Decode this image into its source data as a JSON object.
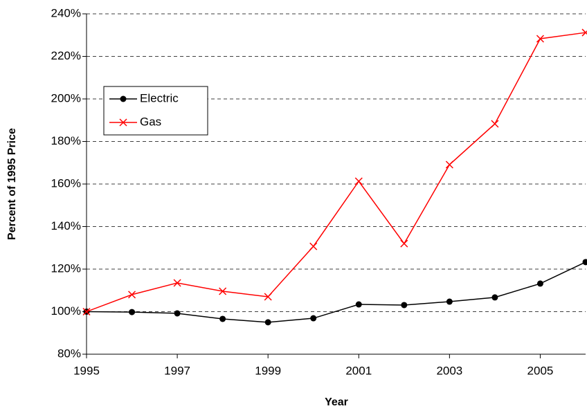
{
  "chart_data": {
    "type": "line",
    "x_label": "Year",
    "y_label": "Percent of 1995 Price",
    "x": [
      1995,
      1996,
      1997,
      1998,
      1999,
      2000,
      2001,
      2002,
      2003,
      2004,
      2005,
      2006
    ],
    "series": [
      {
        "name": "Electric",
        "color": "#000000",
        "marker": "circle",
        "values": [
          100,
          99.8,
          99.2,
          96.6,
          95.0,
          96.9,
          103.4,
          103.1,
          104.7,
          106.7,
          113.2,
          123.3
        ]
      },
      {
        "name": "Gas",
        "color": "#ff0000",
        "marker": "x",
        "values": [
          100,
          108,
          113.5,
          109.6,
          107,
          130.7,
          161.3,
          132,
          169.1,
          188.3,
          228.3,
          231.2
        ]
      }
    ],
    "xlim": [
      1995,
      2006
    ],
    "xticks": [
      1995,
      1997,
      1999,
      2001,
      2003,
      2005
    ],
    "ylim": [
      80,
      240
    ],
    "yticks": [
      {
        "value": 80,
        "label": "80%"
      },
      {
        "value": 100,
        "label": "100%"
      },
      {
        "value": 120,
        "label": "120%"
      },
      {
        "value": 140,
        "label": "140%"
      },
      {
        "value": 160,
        "label": "160%"
      },
      {
        "value": 180,
        "label": "180%"
      },
      {
        "value": 200,
        "label": "200%"
      },
      {
        "value": 220,
        "label": "220%"
      },
      {
        "value": 240,
        "label": "240%"
      }
    ],
    "grid": true,
    "legend": "upper left"
  }
}
